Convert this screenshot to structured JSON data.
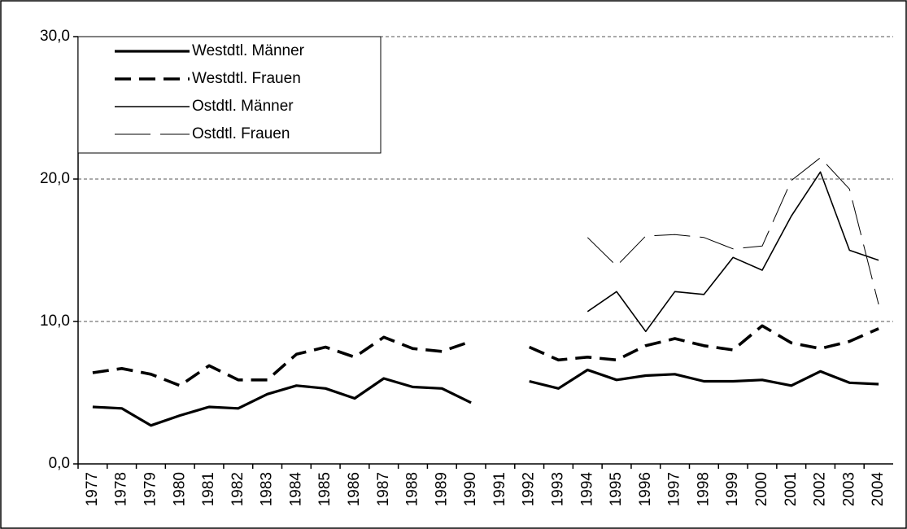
{
  "chart_data": {
    "type": "line",
    "categories": [
      "1977",
      "1978",
      "1979",
      "1980",
      "1981",
      "1982",
      "1983",
      "1984",
      "1985",
      "1986",
      "1987",
      "1988",
      "1989",
      "1990",
      "1991",
      "1992",
      "1993",
      "1994",
      "1995",
      "1996",
      "1997",
      "1998",
      "1999",
      "2000",
      "2001",
      "2002",
      "2003",
      "2004"
    ],
    "series": [
      {
        "name": "Westdtl. Männer",
        "color": "#000000",
        "style": "solid-thick",
        "values": [
          4.0,
          3.9,
          2.7,
          3.4,
          4.0,
          3.9,
          4.9,
          5.5,
          5.3,
          4.6,
          6.0,
          5.4,
          5.3,
          4.3,
          null,
          5.8,
          5.3,
          6.6,
          5.9,
          6.2,
          6.3,
          5.8,
          5.8,
          5.9,
          5.5,
          6.5,
          5.7,
          5.6
        ]
      },
      {
        "name": "Westdtl. Frauen",
        "color": "#000000",
        "style": "dashed-thick",
        "values": [
          6.4,
          6.7,
          6.3,
          5.5,
          6.9,
          5.9,
          5.9,
          7.7,
          8.2,
          7.5,
          8.9,
          8.1,
          7.9,
          8.6,
          null,
          8.2,
          7.3,
          7.5,
          7.3,
          8.3,
          8.8,
          8.3,
          8.0,
          9.7,
          8.5,
          8.1,
          8.6,
          9.5
        ]
      },
      {
        "name": "Ostdtl. Männer",
        "color": "#000000",
        "style": "solid-thin",
        "values": [
          null,
          null,
          null,
          null,
          null,
          null,
          null,
          null,
          null,
          null,
          null,
          null,
          null,
          null,
          null,
          null,
          null,
          10.7,
          12.1,
          9.3,
          12.1,
          11.9,
          14.5,
          13.6,
          17.4,
          20.5,
          15.0,
          14.3
        ]
      },
      {
        "name": "Ostdtl. Frauen",
        "color": "#000000",
        "style": "dashed-thin",
        "values": [
          null,
          null,
          null,
          null,
          null,
          null,
          null,
          null,
          null,
          null,
          null,
          null,
          null,
          null,
          null,
          null,
          null,
          15.9,
          13.9,
          16.0,
          16.1,
          15.9,
          15.1,
          15.3,
          19.9,
          21.5,
          19.3,
          11.2
        ]
      }
    ],
    "ylim": [
      0,
      30
    ],
    "yticks": [
      {
        "value": 0,
        "label": "0,0"
      },
      {
        "value": 10,
        "label": "10,0"
      },
      {
        "value": 20,
        "label": "20,0"
      },
      {
        "value": 30,
        "label": "30,0"
      }
    ],
    "grid": true,
    "legend": "upper left"
  }
}
